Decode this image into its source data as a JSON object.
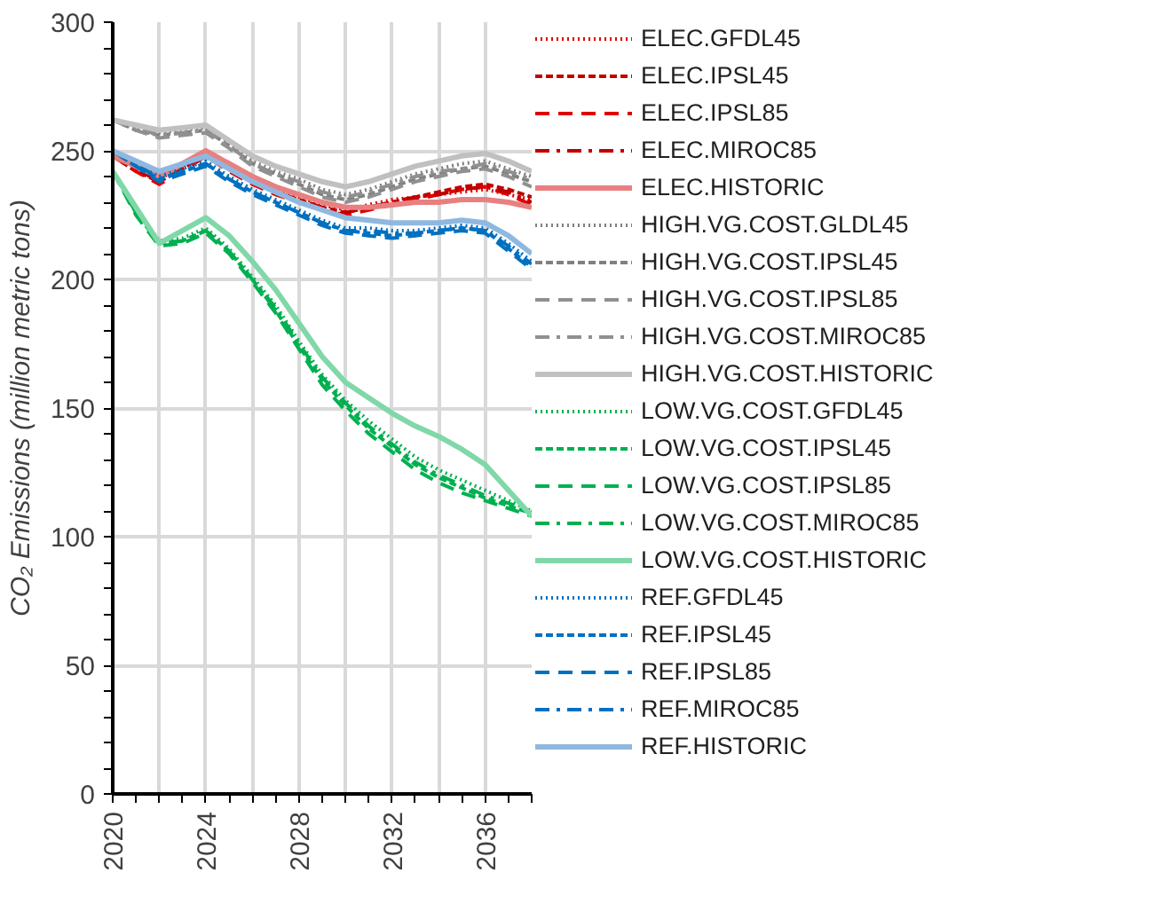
{
  "chart_data": {
    "type": "line",
    "ylabel": "CO₂ Emissions (million metric tons)",
    "x": [
      2020,
      2021,
      2022,
      2023,
      2024,
      2025,
      2026,
      2027,
      2028,
      2029,
      2030,
      2031,
      2032,
      2033,
      2034,
      2035,
      2036,
      2037,
      2038
    ],
    "xlim": [
      2020,
      2038
    ],
    "xticks": [
      2020,
      {
        "value": 2022,
        "label": null
      },
      2024,
      {
        "value": 2026,
        "label": null
      },
      2028,
      {
        "value": 2030,
        "label": null
      },
      2032,
      {
        "value": 2034,
        "label": null
      },
      2036,
      {
        "value": 2038,
        "label": null
      }
    ],
    "ylim": [
      0,
      300
    ],
    "yticks": [
      0,
      50,
      100,
      150,
      200,
      250,
      300
    ],
    "grid": true,
    "legend": "right",
    "marker": "none",
    "series": [
      {
        "name": "ELEC.GFDL45",
        "color": "#e00000",
        "line_style": "dotted",
        "values": [
          248,
          243,
          239,
          244,
          249,
          244,
          239,
          235,
          232,
          229,
          227,
          229,
          231,
          232,
          233,
          234,
          235,
          233,
          231
        ]
      },
      {
        "name": "ELEC.IPSL45",
        "color": "#c00000",
        "line_style": "dashed",
        "values": [
          248,
          242,
          238,
          243,
          249,
          243,
          238,
          234,
          231,
          228,
          226,
          228,
          230,
          232,
          234,
          236,
          237,
          235,
          232
        ]
      },
      {
        "name": "ELEC.IPSL85",
        "color": "#e00000",
        "line_style": "longdash",
        "values": [
          248,
          242,
          237,
          242,
          248,
          242,
          237,
          233,
          230,
          227,
          225,
          227,
          229,
          231,
          233,
          235,
          236,
          233,
          229
        ]
      },
      {
        "name": "ELEC.MIROC85",
        "color": "#c00000",
        "line_style": "dashdot",
        "values": [
          248,
          243,
          238,
          243,
          249,
          243,
          238,
          234,
          231,
          228,
          226,
          228,
          230,
          232,
          233,
          235,
          236,
          234,
          230
        ]
      },
      {
        "name": "ELEC.HISTORIC",
        "color": "#e88080",
        "line_style": "solid",
        "values": [
          248,
          244,
          240,
          245,
          250,
          245,
          240,
          236,
          233,
          230,
          228,
          228,
          229,
          230,
          230,
          231,
          231,
          230,
          228
        ]
      },
      {
        "name": "HIGH.VG.COST.GLDL45",
        "color": "#808080",
        "line_style": "dotted",
        "values": [
          262,
          259,
          257,
          258,
          259,
          253,
          246,
          242,
          239,
          235,
          233,
          235,
          238,
          241,
          243,
          245,
          246,
          243,
          240
        ]
      },
      {
        "name": "HIGH.VG.COST.IPSL45",
        "color": "#808080",
        "line_style": "dashed",
        "values": [
          262,
          258,
          256,
          257,
          258,
          252,
          245,
          241,
          237,
          233,
          231,
          233,
          236,
          239,
          241,
          243,
          244,
          241,
          238
        ]
      },
      {
        "name": "HIGH.VG.COST.IPSL85",
        "color": "#909090",
        "line_style": "longdash",
        "values": [
          262,
          258,
          255,
          256,
          257,
          251,
          244,
          240,
          236,
          232,
          230,
          232,
          235,
          238,
          240,
          242,
          243,
          240,
          236
        ]
      },
      {
        "name": "HIGH.VG.COST.MIROC85",
        "color": "#909090",
        "line_style": "dashdot",
        "values": [
          262,
          259,
          256,
          257,
          258,
          252,
          245,
          241,
          238,
          234,
          232,
          234,
          237,
          240,
          242,
          243,
          245,
          242,
          239
        ]
      },
      {
        "name": "HIGH.VG.COST.HISTORIC",
        "color": "#c0c0c0",
        "line_style": "solid",
        "values": [
          262,
          260,
          258,
          259,
          260,
          254,
          248,
          244,
          241,
          238,
          236,
          238,
          241,
          244,
          246,
          248,
          249,
          246,
          242
        ]
      },
      {
        "name": "LOW.VG.COST.GFDL45",
        "color": "#00b050",
        "line_style": "dotted",
        "values": [
          242,
          227,
          215,
          216,
          220,
          212,
          201,
          190,
          176,
          163,
          153,
          145,
          138,
          131,
          126,
          122,
          118,
          114,
          110
        ]
      },
      {
        "name": "LOW.VG.COST.IPSL45",
        "color": "#00b050",
        "line_style": "dashed",
        "values": [
          242,
          226,
          214,
          215,
          219,
          211,
          200,
          188,
          174,
          161,
          151,
          142,
          135,
          128,
          123,
          119,
          115,
          112,
          109
        ]
      },
      {
        "name": "LOW.VG.COST.IPSL85",
        "color": "#00b050",
        "line_style": "longdash",
        "values": [
          242,
          225,
          213,
          214,
          218,
          210,
          199,
          187,
          173,
          159,
          149,
          140,
          133,
          126,
          121,
          117,
          114,
          111,
          108
        ]
      },
      {
        "name": "LOW.VG.COST.MIROC85",
        "color": "#00b050",
        "line_style": "dashdot",
        "values": [
          242,
          226,
          214,
          215,
          219,
          211,
          200,
          189,
          175,
          162,
          152,
          143,
          136,
          129,
          124,
          120,
          116,
          113,
          110
        ]
      },
      {
        "name": "LOW.VG.COST.HISTORIC",
        "color": "#80d8a8",
        "line_style": "solid",
        "values": [
          242,
          228,
          214,
          219,
          224,
          217,
          207,
          196,
          183,
          170,
          160,
          154,
          148,
          143,
          139,
          134,
          128,
          118,
          108
        ]
      },
      {
        "name": "REF.GFDL45",
        "color": "#0070c0",
        "line_style": "dotted",
        "values": [
          250,
          245,
          240,
          243,
          246,
          240,
          235,
          231,
          227,
          223,
          220,
          220,
          219,
          219,
          220,
          221,
          220,
          214,
          207
        ]
      },
      {
        "name": "REF.IPSL45",
        "color": "#0070c0",
        "line_style": "dashed",
        "values": [
          250,
          244,
          239,
          242,
          245,
          239,
          234,
          230,
          226,
          222,
          219,
          218,
          217,
          218,
          219,
          220,
          219,
          212,
          205
        ]
      },
      {
        "name": "REF.IPSL85",
        "color": "#0070c0",
        "line_style": "longdash",
        "values": [
          250,
          244,
          238,
          241,
          244,
          238,
          233,
          229,
          225,
          221,
          218,
          217,
          216,
          217,
          218,
          219,
          218,
          211,
          204
        ]
      },
      {
        "name": "REF.MIROC85",
        "color": "#0070c0",
        "line_style": "dashdot",
        "values": [
          250,
          245,
          239,
          242,
          245,
          239,
          234,
          230,
          226,
          222,
          219,
          219,
          218,
          218,
          219,
          220,
          219,
          213,
          206
        ]
      },
      {
        "name": "REF.HISTORIC",
        "color": "#8fb8e0",
        "line_style": "solid",
        "values": [
          250,
          246,
          242,
          245,
          248,
          243,
          238,
          234,
          230,
          227,
          224,
          223,
          222,
          222,
          222,
          223,
          222,
          217,
          210
        ]
      }
    ]
  }
}
